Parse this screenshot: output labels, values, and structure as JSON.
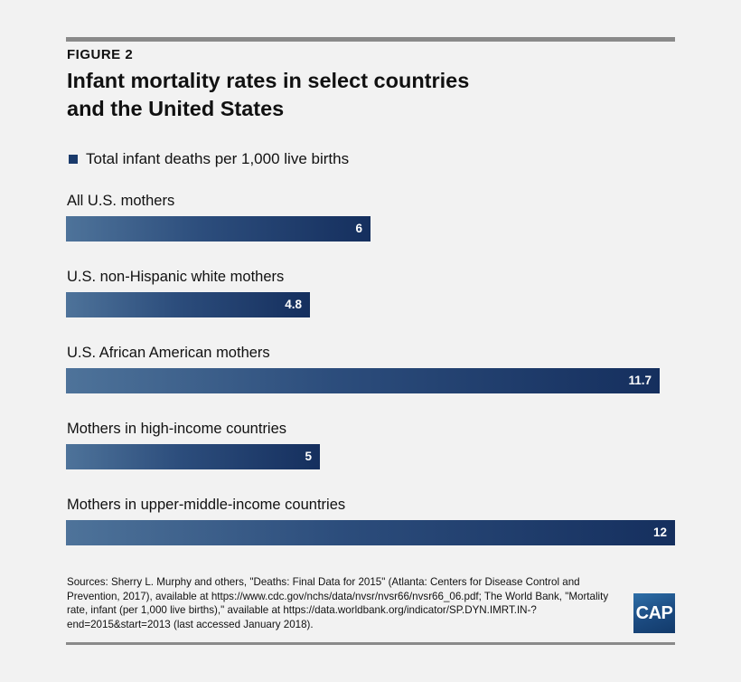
{
  "figure_label": "FIGURE 2",
  "title_line1": "Infant mortality rates in select countries",
  "title_line2": "and the United States",
  "legend_label": "Total infant deaths per 1,000 live births",
  "colors": {
    "bar_dark": "#152f5e",
    "bar_light": "#4e739a",
    "background": "#f2f2f2",
    "rule": "#8a8a8a"
  },
  "chart_data": {
    "type": "bar",
    "orientation": "horizontal",
    "categories": [
      "All U.S. mothers",
      "U.S. non-Hispanic white mothers",
      "U.S. African American mothers",
      "Mothers in high-income countries",
      "Mothers in upper-middle-income countries"
    ],
    "value_labels": [
      "6",
      "4.8",
      "11.7",
      "5",
      "12"
    ],
    "series": [
      {
        "name": "Total infant deaths per 1,000 live births",
        "values": [
          6,
          4.8,
          11.7,
          5,
          12
        ]
      }
    ],
    "xlim": [
      0,
      12
    ],
    "grid": false,
    "legend_position": "top-left"
  },
  "sources_text": "Sources: Sherry L. Murphy and others,  \"Deaths: Final Data for 2015\" (Atlanta: Centers for Disease Control and Prevention, 2017), available at https://www.cdc.gov/nchs/data/nvsr/nvsr66/nvsr66_06.pdf; The World Bank, \"Mortality rate, infant (per 1,000 live births),\" available at https://data.worldbank.org/indicator/SP.DYN.IMRT.IN-?end=2015&start=2013 (last accessed January 2018).",
  "logo_text": "CAP"
}
